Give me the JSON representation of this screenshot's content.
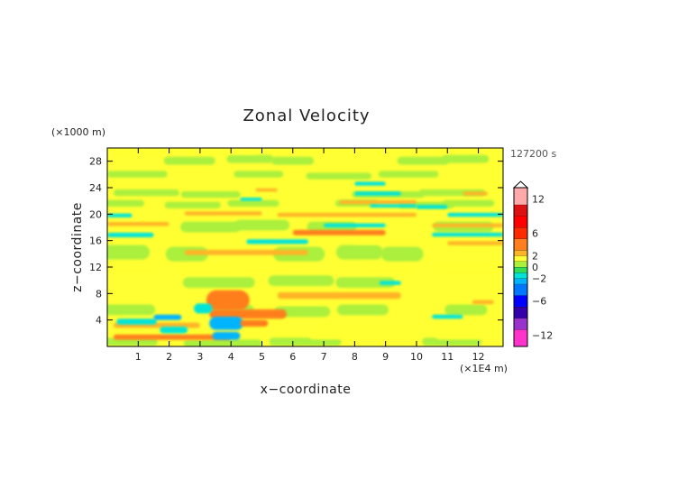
{
  "chart_data": {
    "type": "heatmap",
    "title": "Zonal Velocity",
    "xlabel": "x−coordinate",
    "ylabel": "z−coordinate",
    "x_unit": "(×1E4 m)",
    "y_unit": "(×1000 m)",
    "time_label": "127200 s",
    "xlim": [
      0,
      12.8
    ],
    "ylim": [
      0,
      30
    ],
    "x_ticks": [
      1,
      2,
      3,
      4,
      5,
      6,
      7,
      8,
      9,
      10,
      11,
      12
    ],
    "y_ticks": [
      4,
      8,
      12,
      16,
      20,
      24,
      28
    ],
    "colorbar": {
      "min": -14,
      "max": 14,
      "tick_values": [
        12,
        6,
        2,
        0,
        -2,
        -6,
        -12
      ],
      "tick_labels": [
        "12",
        "6",
        "2",
        "0",
        "−2",
        "−6",
        "−12"
      ],
      "levels": [
        {
          "lo": -14,
          "hi": -11,
          "color": "#ff33cc"
        },
        {
          "lo": -11,
          "hi": -9,
          "color": "#9933cc"
        },
        {
          "lo": -9,
          "hi": -7,
          "color": "#3300aa"
        },
        {
          "lo": -7,
          "hi": -5,
          "color": "#0000ff"
        },
        {
          "lo": -5,
          "hi": -3,
          "color": "#0077ff"
        },
        {
          "lo": -3,
          "hi": -2,
          "color": "#00b4ff"
        },
        {
          "lo": -2,
          "hi": -1,
          "color": "#00e4d8"
        },
        {
          "lo": -1,
          "hi": 0,
          "color": "#33dd55"
        },
        {
          "lo": 0,
          "hi": 1,
          "color": "#aaf03c"
        },
        {
          "lo": 1,
          "hi": 2,
          "color": "#ffff33"
        },
        {
          "lo": 2,
          "hi": 3,
          "color": "#ffb428"
        },
        {
          "lo": 3,
          "hi": 5,
          "color": "#ff7e1e"
        },
        {
          "lo": 5,
          "hi": 7,
          "color": "#ff2a00"
        },
        {
          "lo": 7,
          "hi": 9,
          "color": "#ff0000"
        },
        {
          "lo": 9,
          "hi": 11,
          "color": "#dd1111"
        },
        {
          "lo": 11,
          "hi": 14,
          "color": "#ffaaaa"
        }
      ]
    },
    "features": [
      {
        "x": [
          0.2,
          4.0
        ],
        "z": [
          1.0,
          1.8
        ],
        "value": 3
      },
      {
        "x": [
          0.2,
          3.0
        ],
        "z": [
          2.8,
          3.6
        ],
        "value": 2
      },
      {
        "x": [
          0.3,
          1.6
        ],
        "z": [
          3.3,
          4.2
        ],
        "value": -1.5
      },
      {
        "x": [
          1.7,
          2.6
        ],
        "z": [
          2.0,
          3.0
        ],
        "value": -1.5
      },
      {
        "x": [
          1.5,
          2.4
        ],
        "z": [
          4.0,
          4.8
        ],
        "value": -2.5
      },
      {
        "x": [
          3.2,
          4.6
        ],
        "z": [
          5.5,
          8.5
        ],
        "value": 3
      },
      {
        "x": [
          3.3,
          5.8
        ],
        "z": [
          4.2,
          5.6
        ],
        "value": 3
      },
      {
        "x": [
          3.3,
          4.4
        ],
        "z": [
          2.5,
          4.5
        ],
        "value": -3
      },
      {
        "x": [
          3.4,
          4.3
        ],
        "z": [
          1.0,
          2.2
        ],
        "value": -3
      },
      {
        "x": [
          2.8,
          3.4
        ],
        "z": [
          5.0,
          6.5
        ],
        "value": -1.5
      },
      {
        "x": [
          4.3,
          5.2
        ],
        "z": [
          3.0,
          4.0
        ],
        "value": 3
      },
      {
        "x": [
          5.5,
          9.5
        ],
        "z": [
          7.2,
          8.2
        ],
        "value": 2.5
      },
      {
        "x": [
          8.8,
          9.5
        ],
        "z": [
          9.3,
          9.9
        ],
        "value": -1.5
      },
      {
        "x": [
          10.5,
          11.5
        ],
        "z": [
          4.2,
          4.8
        ],
        "value": -1.5
      },
      {
        "x": [
          11.8,
          12.5
        ],
        "z": [
          6.4,
          7.0
        ],
        "value": 2.5
      },
      {
        "x": [
          2.5,
          6.5
        ],
        "z": [
          13.8,
          14.6
        ],
        "value": 2.5
      },
      {
        "x": [
          4.5,
          6.5
        ],
        "z": [
          15.5,
          16.2
        ],
        "value": -1.5
      },
      {
        "x": [
          0.0,
          1.5
        ],
        "z": [
          16.5,
          17.2
        ],
        "value": -1.5
      },
      {
        "x": [
          6.0,
          9.0
        ],
        "z": [
          16.8,
          17.6
        ],
        "value": 3
      },
      {
        "x": [
          7.0,
          9.0
        ],
        "z": [
          18.0,
          18.6
        ],
        "value": -2
      },
      {
        "x": [
          10.5,
          12.8
        ],
        "z": [
          16.6,
          17.2
        ],
        "value": -1.5
      },
      {
        "x": [
          11.0,
          12.8
        ],
        "z": [
          15.3,
          15.9
        ],
        "value": 2.5
      },
      {
        "x": [
          0.0,
          2.0
        ],
        "z": [
          18.2,
          18.8
        ],
        "value": 2.5
      },
      {
        "x": [
          2.5,
          5.0
        ],
        "z": [
          19.8,
          20.4
        ],
        "value": 2.5
      },
      {
        "x": [
          5.5,
          10.0
        ],
        "z": [
          19.6,
          20.2
        ],
        "value": 2.5
      },
      {
        "x": [
          7.5,
          10.0
        ],
        "z": [
          21.5,
          22.1
        ],
        "value": 2.5
      },
      {
        "x": [
          10.5,
          12.8
        ],
        "z": [
          18.0,
          18.6
        ],
        "value": 2.5
      },
      {
        "x": [
          0.0,
          0.8
        ],
        "z": [
          19.5,
          20.1
        ],
        "value": -2
      },
      {
        "x": [
          11.0,
          12.8
        ],
        "z": [
          19.6,
          20.2
        ],
        "value": -1.5
      },
      {
        "x": [
          8.0,
          9.5
        ],
        "z": [
          22.8,
          23.4
        ],
        "value": -1.5
      },
      {
        "x": [
          4.3,
          5.0
        ],
        "z": [
          22.0,
          22.5
        ],
        "value": -1.5
      },
      {
        "x": [
          11.5,
          12.3
        ],
        "z": [
          22.8,
          23.4
        ],
        "value": 2.5
      },
      {
        "x": [
          4.8,
          5.5
        ],
        "z": [
          23.4,
          23.9
        ],
        "value": 2.5
      },
      {
        "x": [
          8.0,
          9.0
        ],
        "z": [
          24.3,
          24.9
        ],
        "value": -1.5
      },
      {
        "x": [
          10.0,
          11.0
        ],
        "z": [
          20.8,
          21.4
        ],
        "value": -1.5
      },
      {
        "x": [
          8.5,
          10.0
        ],
        "z": [
          21.0,
          21.5
        ],
        "value": -1.5
      }
    ]
  }
}
